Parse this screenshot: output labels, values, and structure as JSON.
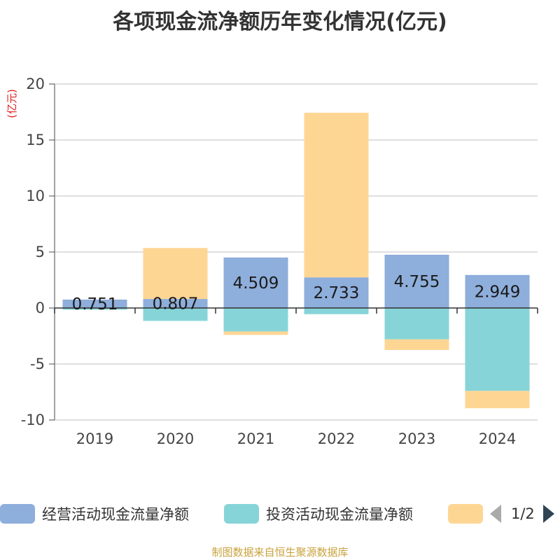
{
  "chart_data": {
    "type": "bar",
    "stacked": true,
    "title": "各项现金流净额历年变化情况(亿元)",
    "ylabel": "(亿元)",
    "xlabel": "",
    "ylim": [
      -10,
      20
    ],
    "yticks": [
      -10,
      -5,
      0,
      5,
      10,
      15,
      20
    ],
    "categories": [
      "2019",
      "2020",
      "2021",
      "2022",
      "2023",
      "2024"
    ],
    "series": [
      {
        "name": "经营活动现金流量净额",
        "color": "#8eaedb",
        "values": [
          0.751,
          0.807,
          4.509,
          2.733,
          4.755,
          2.949
        ],
        "labels": [
          "0.751",
          "0.807",
          "4.509",
          "2.733",
          "4.755",
          "2.949"
        ]
      },
      {
        "name": "投资活动现金流量净额",
        "color": "#86d4d8",
        "values": [
          -0.15,
          -1.15,
          -2.1,
          -0.55,
          -2.8,
          -7.4
        ]
      },
      {
        "name": "",
        "color": "#fed694",
        "values": [
          0,
          4.55,
          -0.3,
          14.7,
          -0.95,
          -1.55
        ]
      }
    ],
    "grid": true,
    "legend_position": "bottom"
  },
  "legend": {
    "items": [
      "经营活动现金流量净额",
      "投资活动现金流量净额",
      ""
    ],
    "page": "1/2"
  },
  "source": "制图数据来自恒生聚源数据库"
}
